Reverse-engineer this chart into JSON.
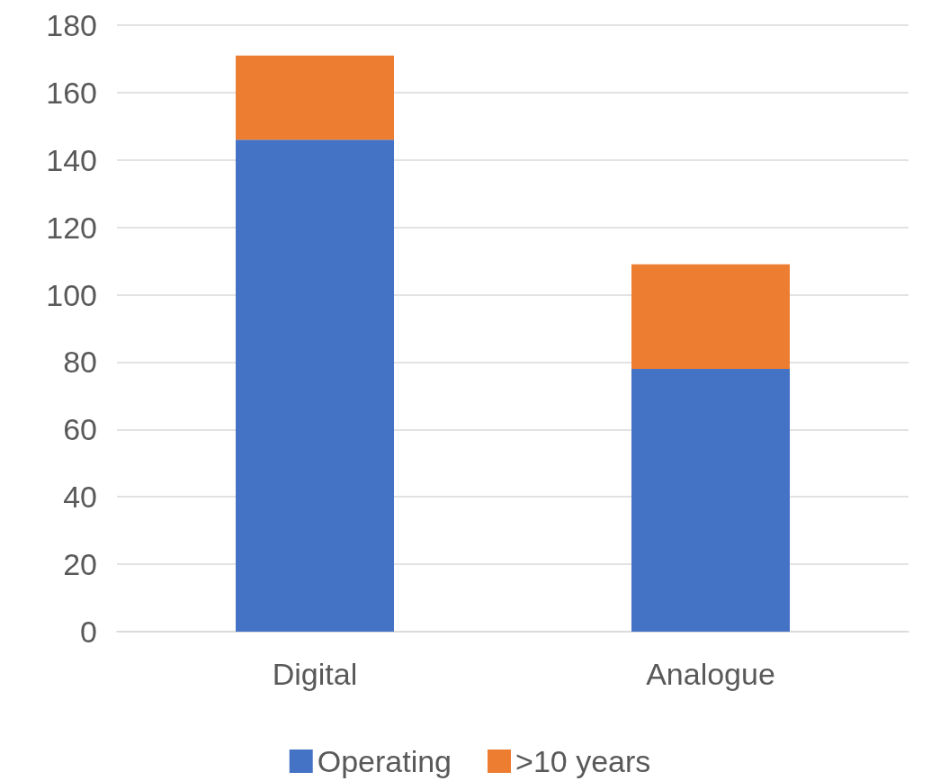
{
  "chart_data": {
    "type": "bar",
    "stacked": true,
    "categories": [
      "Digital",
      "Analogue"
    ],
    "series": [
      {
        "name": "Operating",
        "color": "#4472c4",
        "values": [
          146,
          78
        ]
      },
      {
        "name": ">10 years",
        "color": "#ed7d31",
        "values": [
          25,
          31
        ]
      }
    ],
    "ylim": [
      0,
      180
    ],
    "yticks": [
      0,
      20,
      40,
      60,
      80,
      100,
      120,
      140,
      160,
      180
    ],
    "grid": "y",
    "legend": "bottom"
  }
}
